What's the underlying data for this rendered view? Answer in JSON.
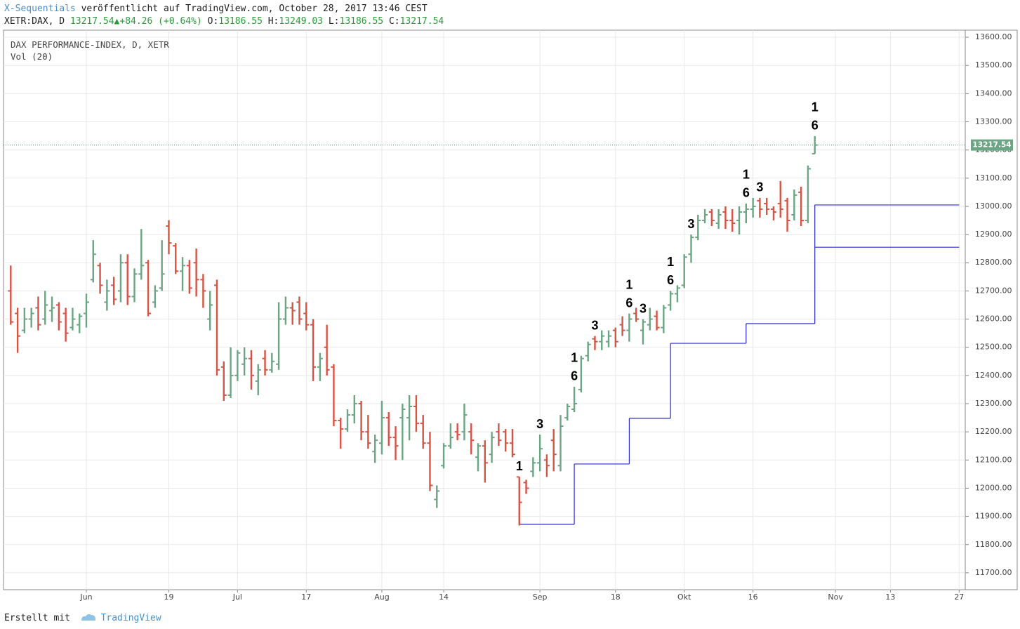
{
  "header": {
    "author": "X-Sequentials",
    "published": "veröffentlicht auf TradingView.com, October 28, 2017 13:46 CEST",
    "symbol": "XETR:DAX, D",
    "last": "13217.54",
    "change": "+84.26",
    "change_pct": "(+0.64%)",
    "o_label": "O:",
    "h_label": "H:",
    "l_label": "L:",
    "c_label": "C:"
  },
  "legend": {
    "line1": "DAX PERFORMANCE-INDEX, D, XETR",
    "line2": "Vol (20)"
  },
  "footer": {
    "made_with": "Erstellt mit",
    "brand": "TradingView"
  },
  "chart_data": {
    "type": "ohlc",
    "up_color": "#6ba583",
    "down_color": "#d75442",
    "grid": true,
    "x": [
      "2017-05-17",
      "2017-05-18",
      "2017-05-19",
      "2017-05-22",
      "2017-05-23",
      "2017-05-24",
      "2017-05-25",
      "2017-05-26",
      "2017-05-29",
      "2017-05-30",
      "2017-05-31",
      "2017-06-01",
      "2017-06-02",
      "2017-06-05",
      "2017-06-06",
      "2017-06-07",
      "2017-06-08",
      "2017-06-09",
      "2017-06-12",
      "2017-06-13",
      "2017-06-14",
      "2017-06-15",
      "2017-06-16",
      "2017-06-19",
      "2017-06-20",
      "2017-06-21",
      "2017-06-22",
      "2017-06-23",
      "2017-06-26",
      "2017-06-27",
      "2017-06-28",
      "2017-06-29",
      "2017-06-30",
      "2017-07-03",
      "2017-07-04",
      "2017-07-05",
      "2017-07-06",
      "2017-07-07",
      "2017-07-10",
      "2017-07-11",
      "2017-07-12",
      "2017-07-13",
      "2017-07-14",
      "2017-07-17",
      "2017-07-18",
      "2017-07-19",
      "2017-07-20",
      "2017-07-21",
      "2017-07-24",
      "2017-07-25",
      "2017-07-26",
      "2017-07-27",
      "2017-07-28",
      "2017-07-31",
      "2017-08-01",
      "2017-08-02",
      "2017-08-03",
      "2017-08-04",
      "2017-08-07",
      "2017-08-08",
      "2017-08-09",
      "2017-08-10",
      "2017-08-11",
      "2017-08-14",
      "2017-08-15",
      "2017-08-16",
      "2017-08-17",
      "2017-08-18",
      "2017-08-21",
      "2017-08-22",
      "2017-08-23",
      "2017-08-24",
      "2017-08-25",
      "2017-08-28",
      "2017-08-29",
      "2017-08-30",
      "2017-08-31",
      "2017-09-01",
      "2017-09-04",
      "2017-09-05",
      "2017-09-06",
      "2017-09-07",
      "2017-09-08",
      "2017-09-11",
      "2017-09-12",
      "2017-09-13",
      "2017-09-14",
      "2017-09-15",
      "2017-09-18",
      "2017-09-19",
      "2017-09-20",
      "2017-09-21",
      "2017-09-22",
      "2017-09-25",
      "2017-09-26",
      "2017-09-27",
      "2017-09-28",
      "2017-09-29",
      "2017-10-02",
      "2017-10-03",
      "2017-10-04",
      "2017-10-05",
      "2017-10-06",
      "2017-10-09",
      "2017-10-10",
      "2017-10-11",
      "2017-10-12",
      "2017-10-13",
      "2017-10-16",
      "2017-10-17",
      "2017-10-18",
      "2017-10-19",
      "2017-10-20",
      "2017-10-23",
      "2017-10-24",
      "2017-10-25",
      "2017-10-26",
      "2017-10-27"
    ],
    "open": [
      12700,
      12620,
      12560,
      12600,
      12640,
      12600,
      12630,
      12650,
      12620,
      12570,
      12580,
      12620,
      12740,
      12790,
      12660,
      12720,
      12700,
      12800,
      12680,
      12760,
      12800,
      12660,
      12710,
      12930,
      12860,
      12770,
      12790,
      12800,
      12740,
      12600,
      12720,
      12430,
      12330,
      12400,
      12440,
      12460,
      12380,
      12460,
      12420,
      12440,
      12600,
      12640,
      12660,
      12620,
      12580,
      12430,
      12500,
      12430,
      12240,
      12210,
      12260,
      12300,
      12200,
      12130,
      12160,
      12250,
      12180,
      12250,
      12250,
      12290,
      12230,
      12160,
      11960,
      12080,
      12150,
      12200,
      12200,
      12200,
      12110,
      12150,
      12120,
      12200,
      12200,
      12160,
      12040,
      12020,
      12060,
      12090,
      12100,
      12170,
      12080,
      12250,
      12280,
      12350,
      12470,
      12530,
      12520,
      12520,
      12560,
      12580,
      12560,
      12620,
      12560,
      12580,
      12610,
      12570,
      12650,
      12690,
      12720,
      12830,
      12890,
      12950,
      12980,
      12940,
      12980,
      12950,
      12950,
      12980,
      12990,
      13020,
      13010,
      12990,
      13010,
      13020,
      12970,
      13050,
      12950,
      13186.55
    ],
    "high": [
      12790,
      12640,
      12640,
      12640,
      12680,
      12700,
      12680,
      12660,
      12640,
      12640,
      12620,
      12690,
      12880,
      12800,
      12740,
      12750,
      12830,
      12830,
      12780,
      12920,
      12810,
      12720,
      12880,
      12951,
      12870,
      12820,
      12810,
      12850,
      12760,
      12700,
      12740,
      12450,
      12500,
      12490,
      12500,
      12490,
      12440,
      12490,
      12480,
      12660,
      12680,
      12660,
      12680,
      12660,
      12600,
      12480,
      12580,
      12440,
      12250,
      12280,
      12330,
      12310,
      12260,
      12190,
      12310,
      12270,
      12220,
      12300,
      12330,
      12330,
      12260,
      12200,
      12010,
      12160,
      12230,
      12230,
      12300,
      12230,
      12160,
      12170,
      12200,
      12230,
      12210,
      12210,
      12040,
      12030,
      12110,
      12190,
      12120,
      12210,
      12260,
      12300,
      12360,
      12470,
      12520,
      12540,
      12560,
      12560,
      12570,
      12610,
      12620,
      12640,
      12600,
      12640,
      12630,
      12650,
      12700,
      12720,
      12830,
      12900,
      12970,
      12990,
      12990,
      12990,
      13000,
      12990,
      13000,
      13010,
      13030,
      13030,
      13030,
      13000,
      13090,
      13030,
      13060,
      13070,
      13145,
      13249.03
    ],
    "low": [
      12580,
      12480,
      12550,
      12570,
      12560,
      12580,
      12590,
      12560,
      12520,
      12560,
      12550,
      12570,
      12730,
      12690,
      12630,
      12650,
      12660,
      12650,
      12660,
      12740,
      12610,
      12640,
      12700,
      12830,
      12760,
      12700,
      12690,
      12680,
      12640,
      12560,
      12400,
      12310,
      12320,
      12380,
      12400,
      12350,
      12330,
      12400,
      12410,
      12420,
      12580,
      12580,
      12580,
      12560,
      12380,
      12380,
      12400,
      12220,
      12140,
      12200,
      12230,
      12170,
      12140,
      12090,
      12120,
      12150,
      12100,
      12100,
      12170,
      12200,
      12140,
      11990,
      11930,
      12070,
      12140,
      12170,
      12170,
      12120,
      12060,
      12020,
      12090,
      12150,
      12130,
      12110,
      11868,
      11980,
      12040,
      12060,
      12040,
      12060,
      12060,
      12240,
      12270,
      12340,
      12450,
      12490,
      12490,
      12500,
      12500,
      12540,
      12520,
      12590,
      12510,
      12560,
      12560,
      12550,
      12630,
      12660,
      12710,
      12800,
      12880,
      12940,
      12930,
      12920,
      12920,
      12910,
      12900,
      12940,
      12960,
      12960,
      12970,
      12950,
      12960,
      12910,
      12950,
      12930,
      12940,
      13186.55
    ],
    "close": [
      12590,
      12540,
      12600,
      12620,
      12580,
      12650,
      12640,
      12590,
      12550,
      12600,
      12610,
      12660,
      12830,
      12720,
      12700,
      12670,
      12800,
      12680,
      12760,
      12790,
      12620,
      12700,
      12760,
      12870,
      12770,
      12790,
      12710,
      12740,
      12700,
      12650,
      12420,
      12330,
      12400,
      12480,
      12460,
      12400,
      12420,
      12420,
      12450,
      12600,
      12640,
      12630,
      12600,
      12580,
      12430,
      12460,
      12420,
      12240,
      12210,
      12260,
      12300,
      12200,
      12160,
      12170,
      12250,
      12180,
      12150,
      12280,
      12290,
      12230,
      12160,
      12010,
      11990,
      12150,
      12180,
      12190,
      12260,
      12170,
      12150,
      12090,
      12180,
      12170,
      12160,
      12120,
      11950,
      12000,
      12090,
      12140,
      12080,
      12120,
      12220,
      12290,
      12300,
      12460,
      12510,
      12520,
      12540,
      12540,
      12520,
      12560,
      12600,
      12600,
      12590,
      12600,
      12570,
      12640,
      12690,
      12710,
      12820,
      12890,
      12950,
      12970,
      12950,
      12970,
      12950,
      12940,
      12980,
      12990,
      13000,
      12990,
      12990,
      12980,
      12990,
      12950,
      13040,
      12950,
      13133.28,
      13217.54
    ],
    "annotations": [
      {
        "x": "2017-08-29",
        "lines": [
          "1"
        ]
      },
      {
        "x": "2017-09-01",
        "lines": [
          "3"
        ]
      },
      {
        "x": "2017-09-08",
        "lines": [
          "1",
          "6"
        ]
      },
      {
        "x": "2017-09-13",
        "lines": [
          "3"
        ]
      },
      {
        "x": "2017-09-20",
        "lines": [
          "1",
          "6"
        ]
      },
      {
        "x": "2017-09-22",
        "lines": [
          "3"
        ]
      },
      {
        "x": "2017-09-28",
        "lines": [
          "1",
          "6"
        ]
      },
      {
        "x": "2017-10-03",
        "lines": [
          "3"
        ]
      },
      {
        "x": "2017-10-13",
        "lines": [
          "1",
          "6"
        ]
      },
      {
        "x": "2017-10-17",
        "lines": [
          "3"
        ]
      },
      {
        "x": "2017-10-27",
        "lines": [
          "1",
          "6"
        ]
      }
    ],
    "levels": {
      "color": "#2b2bd0",
      "steps": [
        {
          "from": "2017-08-29",
          "to": "2017-09-08",
          "value": 11872
        },
        {
          "from": "2017-09-08",
          "to": "2017-09-20",
          "value": 12086
        },
        {
          "from": "2017-09-20",
          "to": "2017-09-28",
          "value": 12248
        },
        {
          "from": "2017-09-28",
          "to": "2017-10-13",
          "value": 12514
        },
        {
          "from": "2017-10-13",
          "to": "2017-10-27",
          "value": 12584
        },
        {
          "from": "2017-10-27",
          "to": "2017-11-27",
          "value": 13005
        },
        {
          "from": "2017-10-27",
          "to": "2017-11-27",
          "value": 12855
        }
      ]
    },
    "ylim": [
      11640,
      13625
    ],
    "yticks": [
      {
        "value": 11700,
        "label": "11700.00"
      },
      {
        "value": 11800,
        "label": "11800.00"
      },
      {
        "value": 11900,
        "label": "11900.00"
      },
      {
        "value": 12000,
        "label": "12000.00"
      },
      {
        "value": 12100,
        "label": "12100.00"
      },
      {
        "value": 12200,
        "label": "12200.00"
      },
      {
        "value": 12300,
        "label": "12300.00"
      },
      {
        "value": 12400,
        "label": "12400.00"
      },
      {
        "value": 12500,
        "label": "12500.00"
      },
      {
        "value": 12600,
        "label": "12600.00"
      },
      {
        "value": 12700,
        "label": "12700.00"
      },
      {
        "value": 12800,
        "label": "12800.00"
      },
      {
        "value": 12900,
        "label": "12900.00"
      },
      {
        "value": 13000,
        "label": "13000.00"
      },
      {
        "value": 13100,
        "label": "13100.00"
      },
      {
        "value": 13200,
        "label": "13200.00"
      },
      {
        "value": 13300,
        "label": "13300.00"
      },
      {
        "value": 13400,
        "label": "13400.00"
      },
      {
        "value": 13500,
        "label": "13500.00"
      },
      {
        "value": 13600,
        "label": "13600.00"
      }
    ],
    "xticks": [
      {
        "value": "2017-06-01",
        "label": "Jun"
      },
      {
        "value": "2017-06-19",
        "label": "19"
      },
      {
        "value": "2017-07-03",
        "label": "Jul"
      },
      {
        "value": "2017-07-17",
        "label": "17"
      },
      {
        "value": "2017-08-01",
        "label": "Aug"
      },
      {
        "value": "2017-08-14",
        "label": "14"
      },
      {
        "value": "2017-09-01",
        "label": "Sep"
      },
      {
        "value": "2017-09-18",
        "label": "18"
      },
      {
        "value": "2017-10-02",
        "label": "Okt"
      },
      {
        "value": "2017-10-16",
        "label": "16"
      },
      {
        "value": "2017-11-01",
        "label": "Nov"
      },
      {
        "value": "2017-11-13",
        "label": "13"
      },
      {
        "value": "2017-11-27",
        "label": "27"
      }
    ]
  }
}
